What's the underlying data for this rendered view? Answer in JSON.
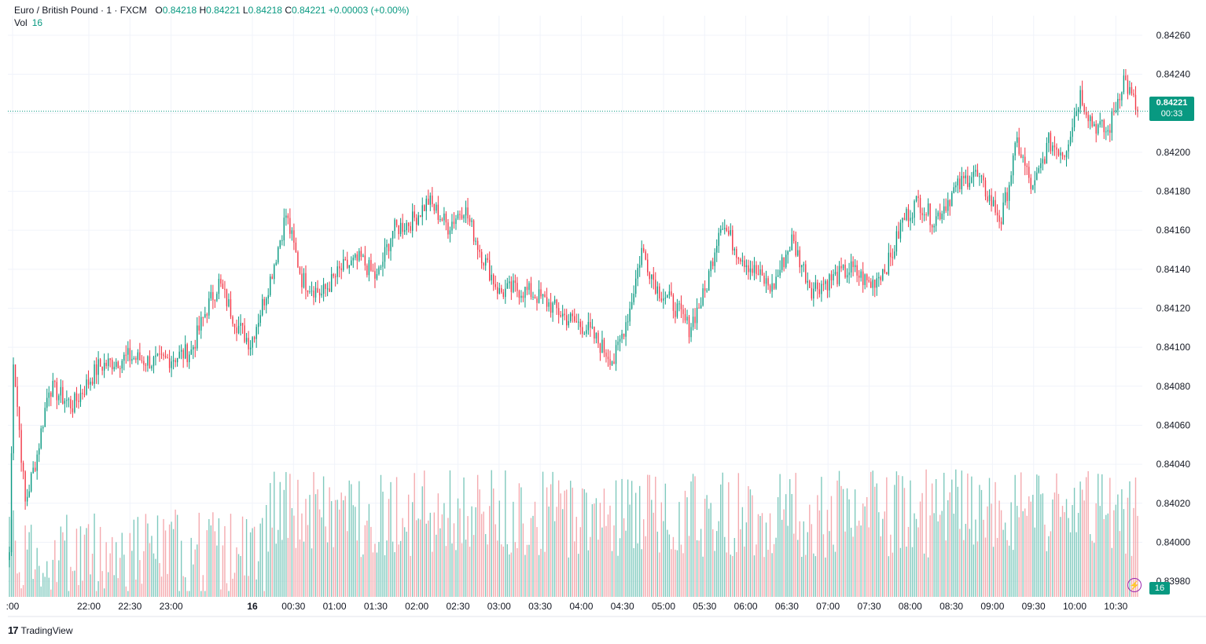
{
  "legend": {
    "symbol": "Euro / British Pound · 1 · FXCM",
    "open_label": "O",
    "open": "0.84218",
    "high_label": "H",
    "high": "0.84221",
    "low_label": "L",
    "low": "0.84218",
    "close_label": "C",
    "close": "0.84221",
    "change": "+0.00003 (+0.00%)",
    "vol_label": "Vol",
    "vol_value": "16"
  },
  "price_tag": {
    "price": "0.84221",
    "countdown": "00:33"
  },
  "vol_tag": "16",
  "brand": {
    "logo_icon": "tradingview-logo-icon",
    "label": "TradingView"
  },
  "colors": {
    "up": "#089981",
    "down": "#f23645",
    "up_vol": "#7ec9bd",
    "down_vol": "#f4a9ae",
    "grid": "#f0f3fa"
  },
  "chart_data": {
    "type": "candlestick",
    "y_ticks": [
      "0.84260",
      "0.84240",
      "0.84220",
      "0.84200",
      "0.84180",
      "0.84160",
      "0.84140",
      "0.84120",
      "0.84100",
      "0.84080",
      "0.84060",
      "0.84040",
      "0.84020",
      "0.84000",
      "0.83980"
    ],
    "x_ticks": [
      ":00",
      "22:00",
      "22:30",
      "23:00",
      "16",
      "00:30",
      "01:00",
      "01:30",
      "02:00",
      "02:30",
      "03:00",
      "03:30",
      "04:00",
      "04:30",
      "05:00",
      "05:30",
      "06:00",
      "06:30",
      "07:00",
      "07:30",
      "08:00",
      "08:30",
      "09:00",
      "09:30",
      "10:00",
      "10:30"
    ],
    "ylim": [
      0.83972,
      0.8427
    ],
    "last_price": 0.84221,
    "close_path": [
      [
        0,
        0.83995
      ],
      [
        2,
        0.84095
      ],
      [
        8,
        0.8402
      ],
      [
        14,
        0.84045
      ],
      [
        20,
        0.8408
      ],
      [
        32,
        0.8407
      ],
      [
        45,
        0.8409
      ],
      [
        60,
        0.84095
      ],
      [
        75,
        0.84092
      ],
      [
        92,
        0.84098
      ],
      [
        100,
        0.8412
      ],
      [
        106,
        0.84133
      ],
      [
        115,
        0.84112
      ],
      [
        122,
        0.84102
      ],
      [
        132,
        0.84135
      ],
      [
        140,
        0.84168
      ],
      [
        148,
        0.84135
      ],
      [
        158,
        0.84127
      ],
      [
        168,
        0.8414
      ],
      [
        178,
        0.84145
      ],
      [
        186,
        0.84135
      ],
      [
        194,
        0.8416
      ],
      [
        204,
        0.84165
      ],
      [
        212,
        0.84175
      ],
      [
        222,
        0.84162
      ],
      [
        230,
        0.84172
      ],
      [
        238,
        0.8415
      ],
      [
        248,
        0.84128
      ],
      [
        256,
        0.8413
      ],
      [
        264,
        0.84128
      ],
      [
        272,
        0.84123
      ],
      [
        282,
        0.84115
      ],
      [
        292,
        0.8411
      ],
      [
        300,
        0.841
      ],
      [
        306,
        0.84093
      ],
      [
        314,
        0.8412
      ],
      [
        320,
        0.8415
      ],
      [
        328,
        0.8413
      ],
      [
        336,
        0.84122
      ],
      [
        344,
        0.8411
      ],
      [
        352,
        0.84128
      ],
      [
        360,
        0.84165
      ],
      [
        368,
        0.8415
      ],
      [
        376,
        0.8414
      ],
      [
        386,
        0.8413
      ],
      [
        396,
        0.84155
      ],
      [
        406,
        0.8413
      ],
      [
        416,
        0.84135
      ],
      [
        426,
        0.8414
      ],
      [
        436,
        0.84132
      ],
      [
        446,
        0.84145
      ],
      [
        452,
        0.84165
      ],
      [
        460,
        0.84175
      ],
      [
        468,
        0.84165
      ],
      [
        478,
        0.8418
      ],
      [
        488,
        0.8419
      ],
      [
        494,
        0.8418
      ],
      [
        502,
        0.84165
      ],
      [
        510,
        0.84205
      ],
      [
        518,
        0.8418
      ],
      [
        526,
        0.84205
      ],
      [
        534,
        0.842
      ],
      [
        542,
        0.8423
      ],
      [
        548,
        0.84215
      ],
      [
        556,
        0.8421
      ],
      [
        564,
        0.84238
      ],
      [
        568,
        0.84228
      ],
      [
        571,
        0.84221
      ]
    ],
    "total_bars": 572,
    "volume_ylim": [
      0,
      80
    ]
  }
}
